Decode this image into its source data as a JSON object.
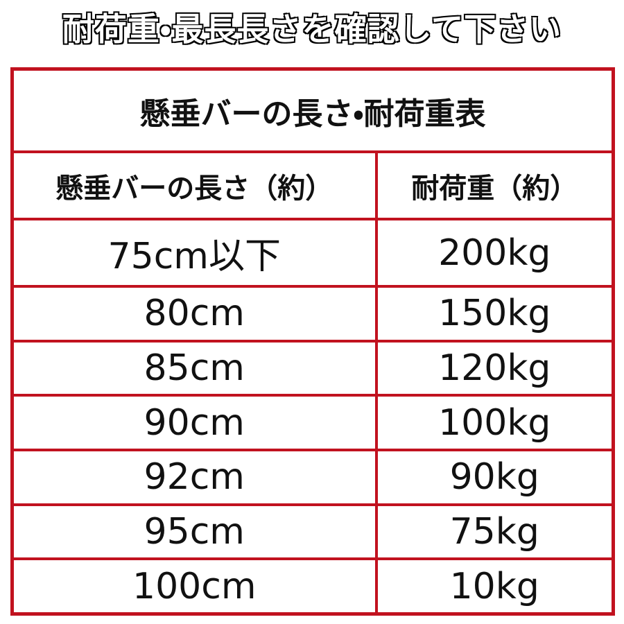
{
  "header": {
    "title": "耐荷重・最長長さを確認して下さい"
  },
  "table": {
    "title": "懸垂バーの長さ・耐荷重表",
    "columns": [
      "懸垂バーの長さ（約）",
      "耐荷重（約）"
    ],
    "rows": [
      [
        "75cm以下",
        "200kg"
      ],
      [
        "80cm",
        "150kg"
      ],
      [
        "85cm",
        "120kg"
      ],
      [
        "90cm",
        "100kg"
      ],
      [
        "92cm",
        "90kg"
      ],
      [
        "95cm",
        "75kg"
      ],
      [
        "100cm",
        "10kg"
      ]
    ]
  }
}
